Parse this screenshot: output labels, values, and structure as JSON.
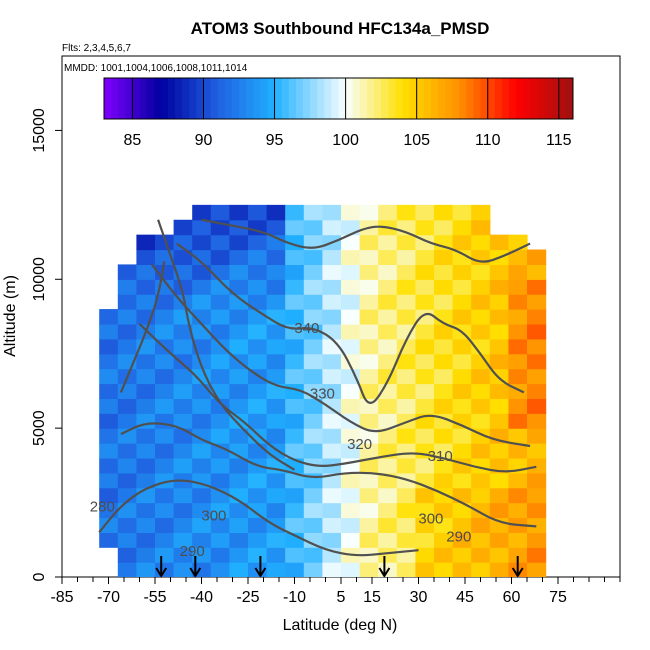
{
  "chart_data": {
    "type": "heatmap",
    "title": "ATOM3 Southbound HFC134a_PMSD",
    "flights_note": "Flts: 2,3,4,5,6,7",
    "dates_note": "MMDD: 1001,1004,1006,1008,1011,1014",
    "xlabel": "Latitude (deg N)",
    "ylabel": "Altitude (m)",
    "xlim": [
      -85,
      95
    ],
    "ylim": [
      0,
      17500
    ],
    "x_ticks_labeled": [
      -85,
      -70,
      -55,
      -40,
      -25,
      -10,
      5,
      15,
      30,
      45,
      60,
      75
    ],
    "y_ticks_labeled": [
      0,
      5000,
      10000,
      15000
    ],
    "colorbar": {
      "range": [
        83,
        116
      ],
      "ticks": [
        85,
        90,
        95,
        100,
        105,
        110,
        115
      ],
      "colors": [
        "#8000ff",
        "#0000a0",
        "#2060e0",
        "#20b0ff",
        "#f8ffff",
        "#ffe000",
        "#ff9000",
        "#ff0000",
        "#a01010"
      ]
    },
    "contour_labels": [
      {
        "text": "340",
        "lat": -6,
        "alt": 8200
      },
      {
        "text": "330",
        "lat": -1,
        "alt": 6000
      },
      {
        "text": "320",
        "lat": 11,
        "alt": 4300
      },
      {
        "text": "310",
        "lat": 37,
        "alt": 3900
      },
      {
        "text": "300",
        "lat": 34,
        "alt": 1800
      },
      {
        "text": "290",
        "lat": 43,
        "alt": 1200
      },
      {
        "text": "300",
        "lat": -36,
        "alt": 1900
      },
      {
        "text": "280",
        "lat": -72,
        "alt": 2200
      },
      {
        "text": "290",
        "lat": -43,
        "alt": 700
      }
    ],
    "flight_markers_lat": [
      -53,
      -42,
      -21,
      19,
      62
    ],
    "field": {
      "lat_bins": [
        -70,
        -64,
        -58,
        -52,
        -46,
        -40,
        -34,
        -28,
        -22,
        -16,
        -10,
        -4,
        2,
        8,
        14,
        20,
        26,
        32,
        38,
        44,
        50,
        56,
        62,
        68
      ],
      "alt_bins_km": [
        0.25,
        0.75,
        1.25,
        1.75,
        2.25,
        2.75,
        3.25,
        3.75,
        4.25,
        4.75,
        5.25,
        5.75,
        6.25,
        6.75,
        7.25,
        7.75,
        8.25,
        8.75,
        9.25,
        9.75,
        10.25,
        10.75,
        11.25,
        11.75,
        12.25
      ],
      "note": "values are the HFC134a_PMSD colour level of each cell"
    }
  }
}
